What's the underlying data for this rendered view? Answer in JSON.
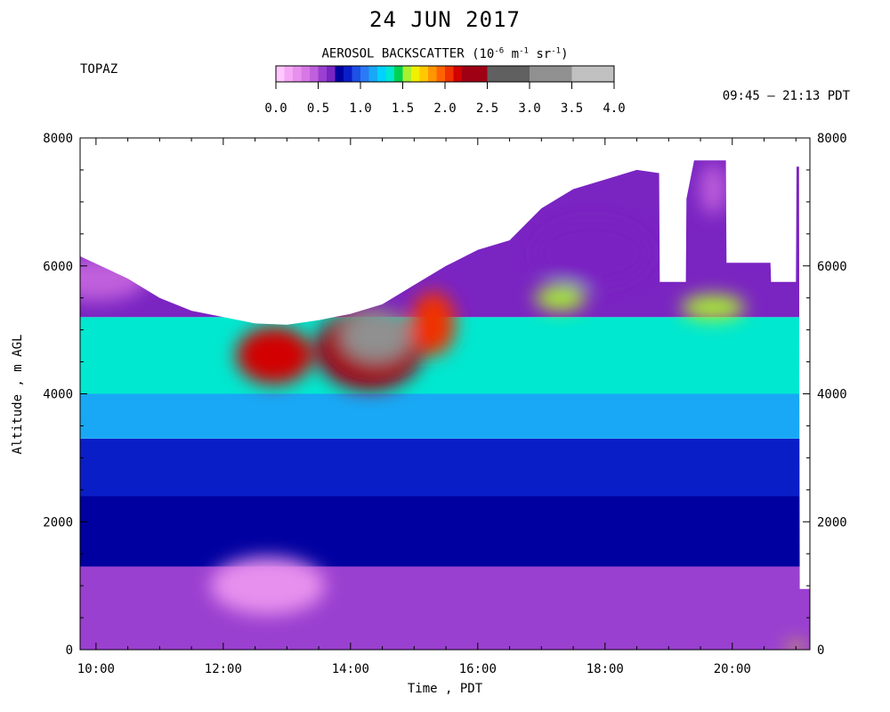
{
  "header": {
    "date": "24 JUN 2017",
    "instrument": "TOPAZ",
    "time_range": "09:45 – 21:13 PDT",
    "colorbar_title": "AEROSOL BACKSCATTER",
    "colorbar_units_open": "(10",
    "colorbar_units_exp1": "-6",
    "colorbar_units_mid": " m",
    "colorbar_units_exp2": "-1",
    "colorbar_units_mid2": " sr",
    "colorbar_units_exp3": "-1",
    "colorbar_units_close": ")"
  },
  "chart_data": {
    "type": "heatmap",
    "title": "24 JUN 2017",
    "xlabel": "Time , PDT",
    "ylabel": "Altitude , m AGL",
    "xlim_hours": [
      9.75,
      21.22
    ],
    "ylim": [
      0,
      8000
    ],
    "x_ticks": [
      {
        "value": 10,
        "label": "10:00"
      },
      {
        "value": 12,
        "label": "12:00"
      },
      {
        "value": 14,
        "label": "14:00"
      },
      {
        "value": 16,
        "label": "16:00"
      },
      {
        "value": 18,
        "label": "18:00"
      },
      {
        "value": 20,
        "label": "20:00"
      }
    ],
    "y_ticks": [
      {
        "value": 0,
        "label": "0"
      },
      {
        "value": 2000,
        "label": "2000"
      },
      {
        "value": 4000,
        "label": "4000"
      },
      {
        "value": 6000,
        "label": "6000"
      },
      {
        "value": 8000,
        "label": "8000"
      }
    ],
    "colorbar": {
      "range": [
        0,
        4
      ],
      "tick_labels": [
        "0.0",
        "0.5",
        "1.0",
        "1.5",
        "2.0",
        "2.5",
        "3.0",
        "3.5",
        "4.0"
      ],
      "colors": [
        "#ffc8ff",
        "#f5a8f5",
        "#e890ee",
        "#d878e6",
        "#c060dc",
        "#9a40d0",
        "#7a24c2",
        "#0000a0",
        "#0a1ec8",
        "#1e50e6",
        "#2a7af5",
        "#18a8f5",
        "#00d2ff",
        "#00e8d0",
        "#00d250",
        "#a8f030",
        "#f0f000",
        "#ffc800",
        "#ff9600",
        "#ff6400",
        "#f03200",
        "#d20000",
        "#a00014",
        "#606060",
        "#909090",
        "#c0c0c0"
      ],
      "boundaries": [
        0,
        0.1,
        0.2,
        0.3,
        0.4,
        0.5,
        0.6,
        0.7,
        0.8,
        0.9,
        1.0,
        1.1,
        1.2,
        1.3,
        1.4,
        1.5,
        1.6,
        1.7,
        1.8,
        1.9,
        2.0,
        2.1,
        2.2,
        2.5,
        3.0,
        3.5,
        4.0
      ]
    },
    "profile_top": [
      {
        "t": 9.75,
        "z": 6150
      },
      {
        "t": 10.5,
        "z": 5800
      },
      {
        "t": 11.0,
        "z": 5500
      },
      {
        "t": 11.5,
        "z": 5300
      },
      {
        "t": 12.0,
        "z": 5200
      },
      {
        "t": 12.5,
        "z": 5100
      },
      {
        "t": 13.0,
        "z": 5080
      },
      {
        "t": 13.5,
        "z": 5150
      },
      {
        "t": 14.0,
        "z": 5250
      },
      {
        "t": 14.5,
        "z": 5400
      },
      {
        "t": 15.0,
        "z": 5700
      },
      {
        "t": 15.5,
        "z": 6000
      },
      {
        "t": 16.0,
        "z": 6250
      },
      {
        "t": 16.5,
        "z": 6400
      },
      {
        "t": 17.0,
        "z": 6900
      },
      {
        "t": 17.5,
        "z": 7200
      },
      {
        "t": 18.0,
        "z": 7350
      },
      {
        "t": 18.5,
        "z": 7500
      },
      {
        "t": 18.85,
        "z": 7450
      },
      {
        "t": 18.86,
        "z": 5750
      },
      {
        "t": 19.27,
        "z": 5750
      },
      {
        "t": 19.28,
        "z": 7050
      },
      {
        "t": 19.4,
        "z": 7650
      },
      {
        "t": 19.9,
        "z": 7650
      },
      {
        "t": 19.91,
        "z": 6050
      },
      {
        "t": 20.6,
        "z": 6050
      },
      {
        "t": 20.61,
        "z": 5750
      },
      {
        "t": 21.0,
        "z": 5750
      },
      {
        "t": 21.01,
        "z": 7550
      },
      {
        "t": 21.05,
        "z": 7550
      },
      {
        "t": 21.06,
        "z": 950
      },
      {
        "t": 21.22,
        "z": 950
      }
    ],
    "layers": [
      {
        "z0": 0,
        "z1": 1300,
        "value": 0.55
      },
      {
        "z0": 1300,
        "z1": 2400,
        "value": 0.72
      },
      {
        "z0": 2400,
        "z1": 3300,
        "value": 0.88
      },
      {
        "z0": 3300,
        "z1": 4000,
        "value": 1.15
      },
      {
        "z0": 4000,
        "z1": 5200,
        "value": 1.3
      },
      {
        "z0": 5200,
        "z1": 8000,
        "value": 0.6
      }
    ],
    "features": [
      {
        "t": 14.3,
        "z": 4700,
        "dt": 0.85,
        "dz": 650,
        "value": 2.3
      },
      {
        "t": 14.4,
        "z": 4900,
        "dt": 0.55,
        "dz": 400,
        "value": 3.2
      },
      {
        "t": 12.8,
        "z": 4600,
        "dt": 0.6,
        "dz": 450,
        "value": 2.1
      },
      {
        "t": 15.3,
        "z": 5100,
        "dt": 0.35,
        "dz": 500,
        "value": 2.05
      },
      {
        "t": 10.0,
        "z": 5800,
        "dt": 0.8,
        "dz": 350,
        "value": 0.4
      },
      {
        "t": 12.7,
        "z": 1000,
        "dt": 0.9,
        "dz": 450,
        "value": 0.2
      },
      {
        "t": 17.8,
        "z": 6200,
        "dt": 0.9,
        "dz": 500,
        "value": 0.65
      },
      {
        "t": 19.7,
        "z": 7200,
        "dt": 0.2,
        "dz": 400,
        "value": 0.45
      },
      {
        "t": 19.7,
        "z": 5350,
        "dt": 0.5,
        "dz": 200,
        "value": 1.55
      },
      {
        "t": 17.3,
        "z": 5500,
        "dt": 0.4,
        "dz": 200,
        "value": 1.5
      },
      {
        "t": 21.0,
        "z": 40,
        "dt": 0.15,
        "dz": 60,
        "value": 1.65
      }
    ]
  }
}
